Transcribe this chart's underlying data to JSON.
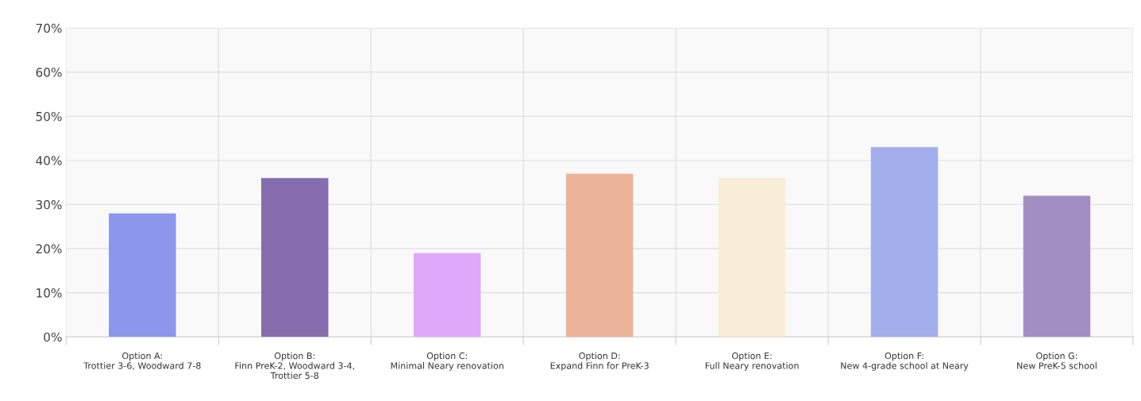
{
  "chart_data": {
    "type": "bar",
    "categories": [
      "Option A:\nTrottier 3-6, Woodward 7-8",
      "Option B:\nFinn PreK-2, Woodward 3-4,\nTrottier 5-8",
      "Option C:\nMinimal Neary renovation",
      "Option D:\nExpand Finn for PreK-3",
      "Option E:\nFull Neary renovation",
      "Option F:\nNew 4-grade school at Neary",
      "Option G:\nNew PreK-5 school"
    ],
    "values": [
      28,
      36,
      19,
      37,
      36,
      43,
      32
    ],
    "colors": [
      "#8c96ec",
      "#856dae",
      "#dfa8fb",
      "#ebb39a",
      "#f9edd6",
      "#a3aeec",
      "#a38ec4"
    ],
    "ylim": [
      0,
      70
    ],
    "yticks": [
      {
        "value": 0,
        "label": "0%"
      },
      {
        "value": 10,
        "label": "10%"
      },
      {
        "value": 20,
        "label": "20%"
      },
      {
        "value": 30,
        "label": "30%"
      },
      {
        "value": 40,
        "label": "40%"
      },
      {
        "value": 50,
        "label": "50%"
      },
      {
        "value": 60,
        "label": "60%"
      },
      {
        "value": 70,
        "label": "70%"
      }
    ],
    "grid": true
  }
}
